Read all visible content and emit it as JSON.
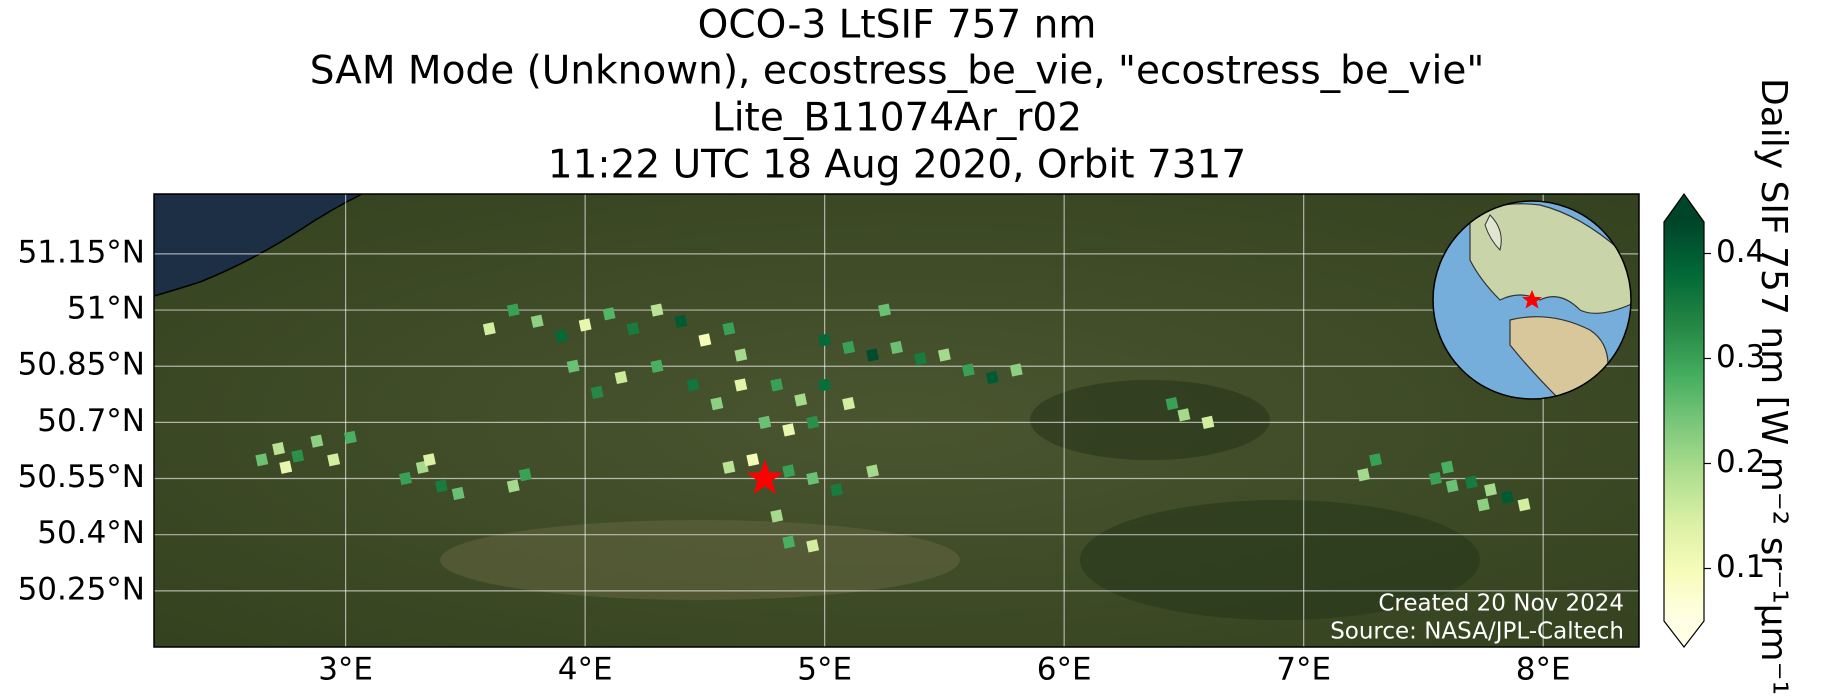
{
  "chart_data": {
    "type": "map",
    "title": [
      "OCO-3 LtSIF 757 nm",
      "SAM Mode (Unknown), ecostress_be_vie, \"ecostress_be_vie\"",
      "Lite_B11074Ar_r02",
      "11:22 UTC 18 Aug 2020, Orbit 7317"
    ],
    "xlim": [
      2.2,
      8.4
    ],
    "ylim": [
      50.1,
      51.31
    ],
    "xticks": [
      {
        "value": 3,
        "label": "3°E"
      },
      {
        "value": 4,
        "label": "4°E"
      },
      {
        "value": 5,
        "label": "5°E"
      },
      {
        "value": 6,
        "label": "6°E"
      },
      {
        "value": 7,
        "label": "7°E"
      },
      {
        "value": 8,
        "label": "8°E"
      }
    ],
    "yticks": [
      {
        "value": 51.15,
        "label": "51.15°N"
      },
      {
        "value": 51,
        "label": "51°N"
      },
      {
        "value": 50.85,
        "label": "50.85°N"
      },
      {
        "value": 50.7,
        "label": "50.7°N"
      },
      {
        "value": 50.55,
        "label": "50.55°N"
      },
      {
        "value": 50.4,
        "label": "50.4°N"
      },
      {
        "value": 50.25,
        "label": "50.25°N"
      }
    ],
    "grid": true,
    "colorbar": {
      "label": "Daily SIF 757 nm [W m⁻² sr⁻¹μm⁻¹]",
      "clim": [
        0.05,
        0.43
      ],
      "ticks": [
        0.1,
        0.2,
        0.3,
        0.4
      ],
      "extend": "both"
    },
    "colormap": [
      "#ffffe5",
      "#f7fcb9",
      "#d9f0a3",
      "#addd8e",
      "#78c679",
      "#41ab5d",
      "#238443",
      "#006837",
      "#004529"
    ],
    "target": {
      "lon": 4.75,
      "lat": 50.55,
      "color": "#ff0000"
    },
    "soundings": {
      "lon": [
        2.65,
        2.72,
        2.8,
        2.88,
        2.95,
        3.02,
        2.75,
        3.25,
        3.32,
        3.4,
        3.47,
        3.35,
        3.7,
        3.75,
        3.6,
        3.7,
        3.8,
        3.9,
        4.0,
        4.1,
        4.2,
        4.3,
        4.4,
        4.5,
        4.6,
        4.65,
        3.95,
        4.05,
        4.15,
        4.3,
        4.45,
        4.55,
        4.65,
        4.8,
        4.9,
        5.0,
        5.1,
        4.75,
        4.85,
        4.95,
        5.0,
        5.1,
        5.2,
        5.3,
        5.4,
        5.5,
        5.6,
        5.7,
        5.8,
        4.6,
        4.7,
        4.85,
        4.95,
        5.05,
        4.8,
        4.85,
        4.95,
        5.2,
        5.25,
        6.45,
        6.5,
        6.6,
        7.3,
        7.25,
        7.55,
        7.62,
        7.7,
        7.78,
        7.85,
        7.92,
        7.6,
        7.75
      ],
      "lat": [
        50.6,
        50.63,
        50.61,
        50.65,
        50.6,
        50.66,
        50.58,
        50.55,
        50.58,
        50.53,
        50.51,
        50.6,
        50.53,
        50.56,
        50.95,
        51.0,
        50.97,
        50.93,
        50.96,
        50.99,
        50.95,
        51.0,
        50.97,
        50.92,
        50.95,
        50.88,
        50.85,
        50.78,
        50.82,
        50.85,
        50.8,
        50.75,
        50.8,
        50.8,
        50.76,
        50.8,
        50.75,
        50.7,
        50.68,
        50.7,
        50.92,
        50.9,
        50.88,
        50.9,
        50.87,
        50.88,
        50.84,
        50.82,
        50.84,
        50.58,
        50.6,
        50.57,
        50.55,
        50.52,
        50.45,
        50.38,
        50.37,
        50.57,
        51.0,
        50.75,
        50.72,
        50.7,
        50.6,
        50.56,
        50.55,
        50.53,
        50.54,
        50.52,
        50.5,
        50.48,
        50.58,
        50.48
      ],
      "values": [
        0.25,
        0.18,
        0.32,
        0.22,
        0.15,
        0.28,
        0.12,
        0.3,
        0.2,
        0.35,
        0.25,
        0.14,
        0.2,
        0.3,
        0.15,
        0.3,
        0.22,
        0.38,
        0.12,
        0.27,
        0.35,
        0.18,
        0.4,
        0.1,
        0.3,
        0.2,
        0.25,
        0.33,
        0.16,
        0.28,
        0.36,
        0.22,
        0.13,
        0.3,
        0.2,
        0.37,
        0.15,
        0.25,
        0.12,
        0.32,
        0.38,
        0.3,
        0.42,
        0.25,
        0.35,
        0.2,
        0.3,
        0.4,
        0.22,
        0.18,
        0.1,
        0.3,
        0.25,
        0.35,
        0.2,
        0.28,
        0.15,
        0.2,
        0.25,
        0.3,
        0.2,
        0.15,
        0.3,
        0.2,
        0.3,
        0.25,
        0.35,
        0.2,
        0.4,
        0.15,
        0.28,
        0.22
      ]
    },
    "credits": [
      "Created 20 Nov 2024",
      "Source: NASA/JPL-Caltech"
    ]
  }
}
